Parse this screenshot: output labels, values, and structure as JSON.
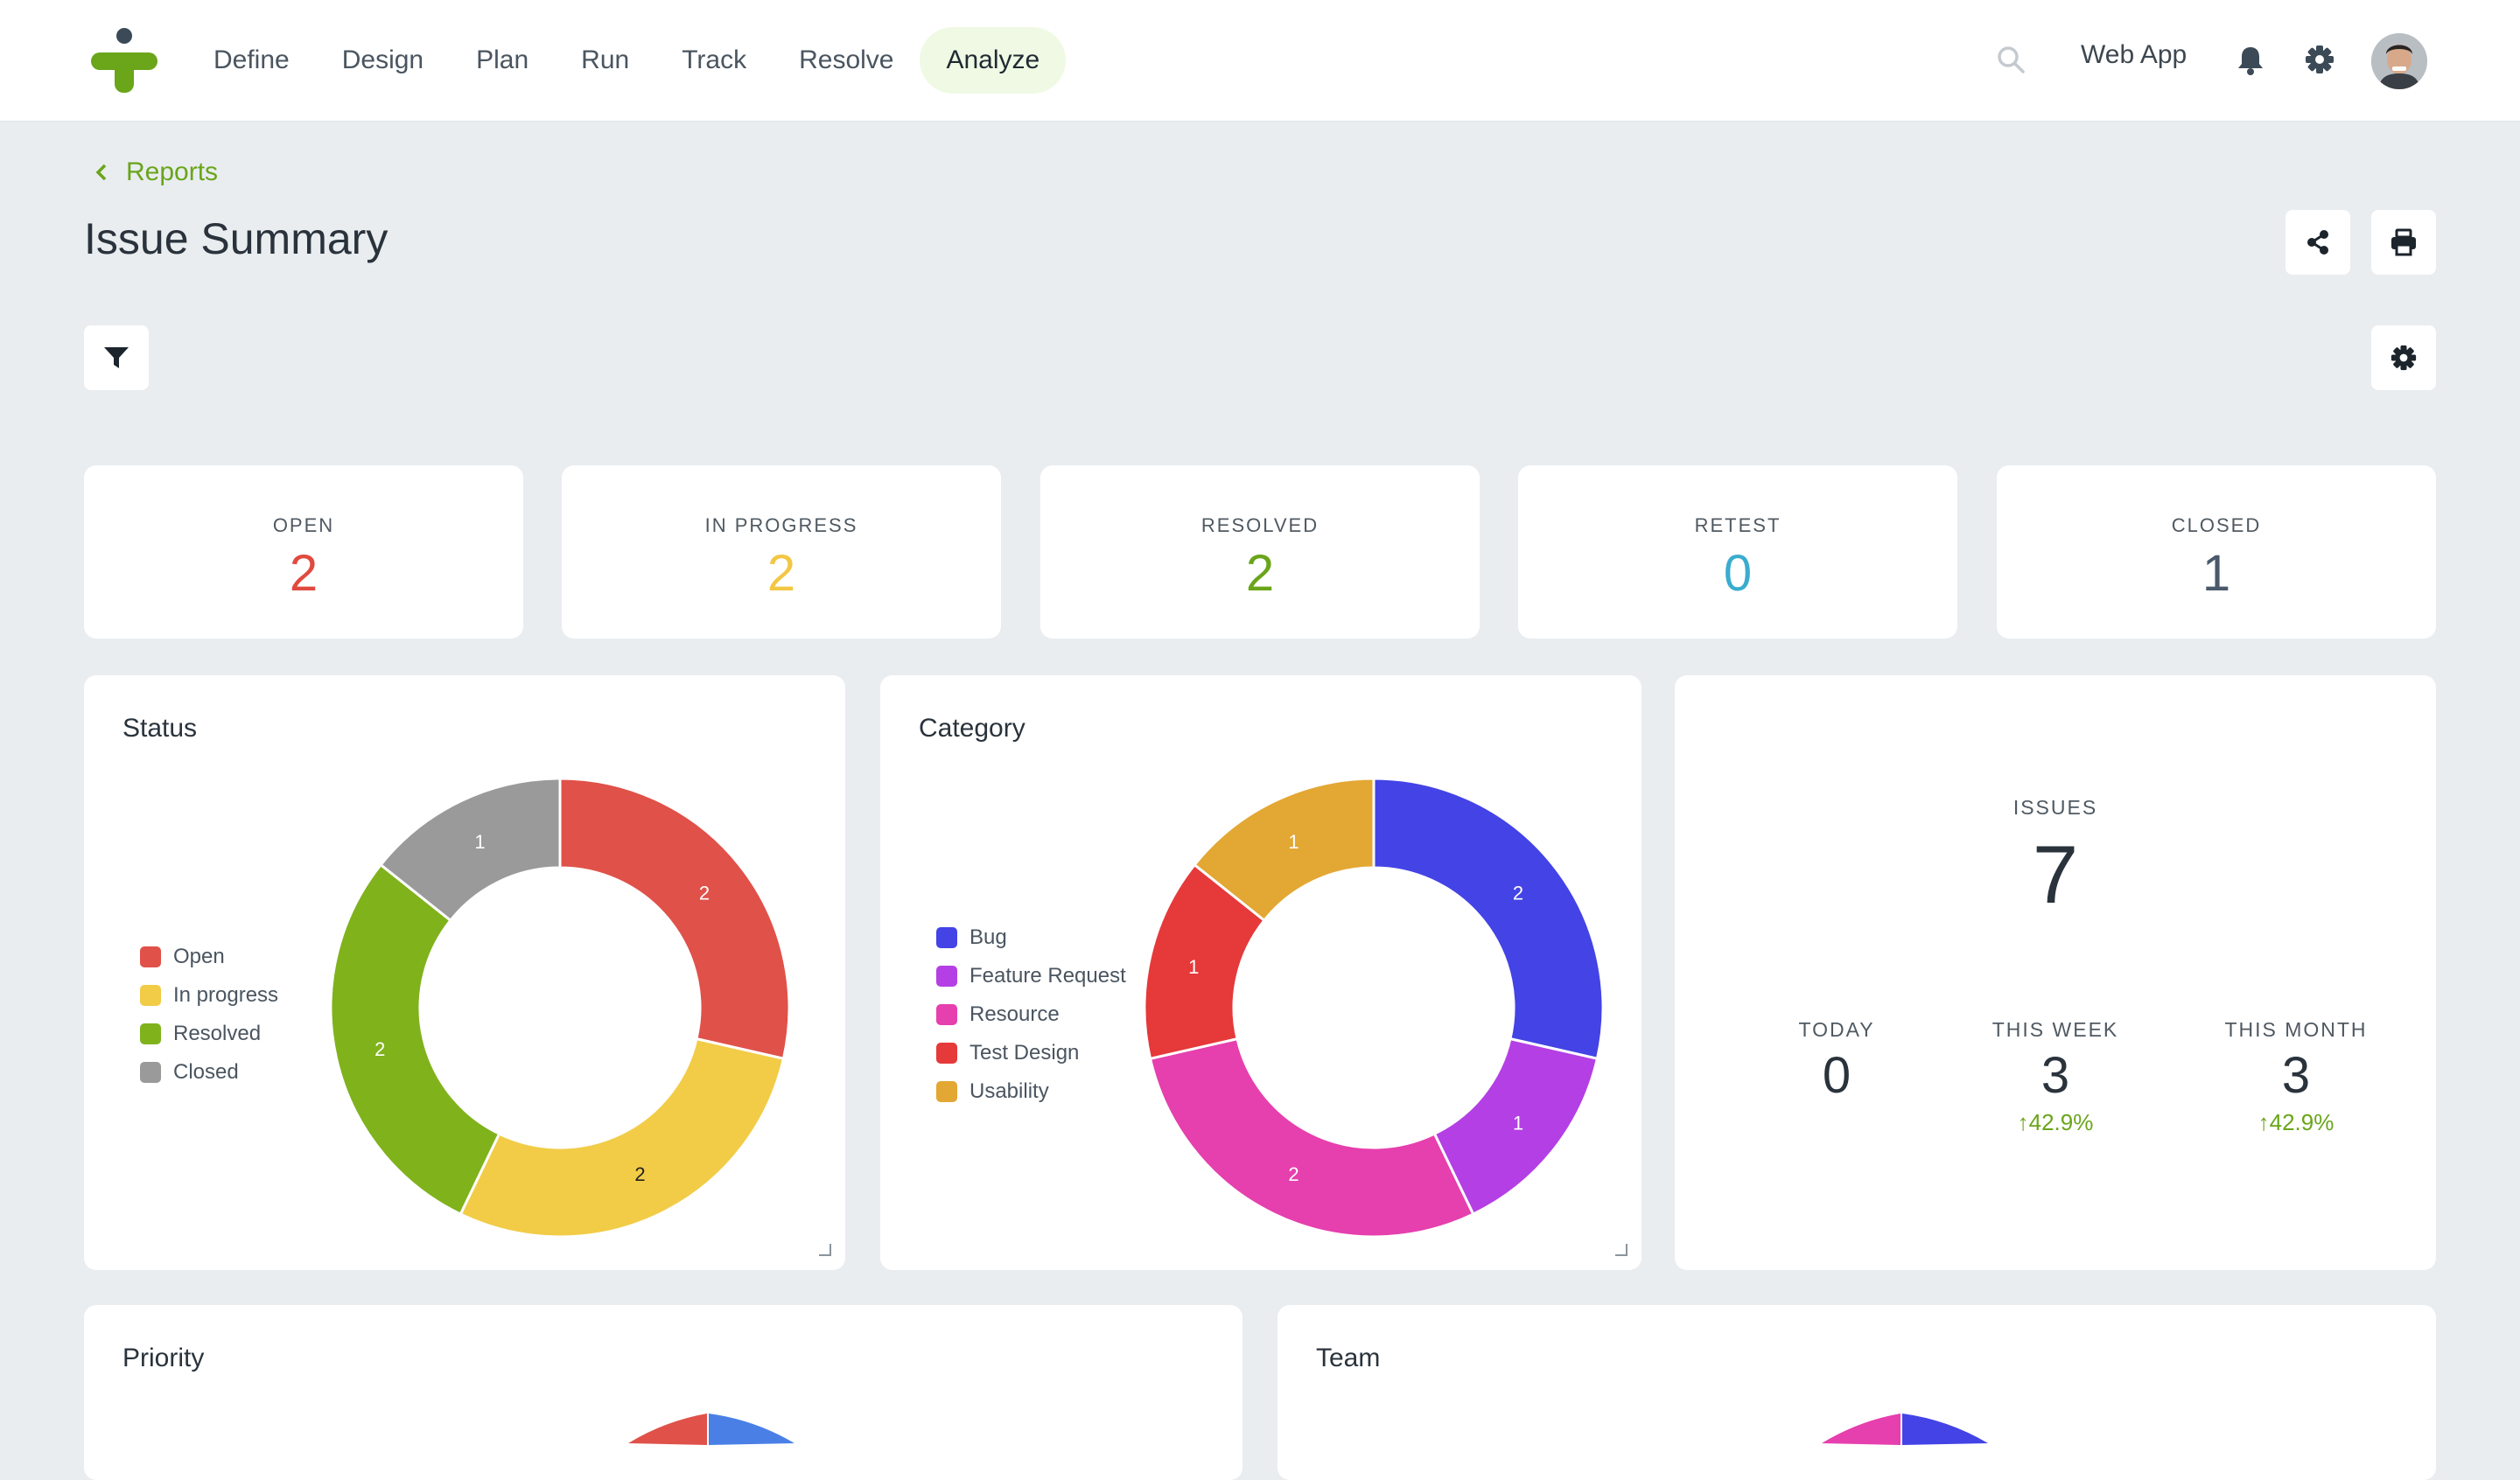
{
  "nav": {
    "items": [
      "Define",
      "Design",
      "Plan",
      "Run",
      "Track",
      "Resolve",
      "Analyze"
    ],
    "active": "Analyze",
    "workspace": "Web App"
  },
  "header": {
    "breadcrumb": "Reports",
    "title": "Issue Summary"
  },
  "stats": [
    {
      "label": "OPEN",
      "value": "2",
      "color": "#e04a3f"
    },
    {
      "label": "IN PROGRESS",
      "value": "2",
      "color": "#f2c744"
    },
    {
      "label": "RESOLVED",
      "value": "2",
      "color": "#6aa51a"
    },
    {
      "label": "RETEST",
      "value": "0",
      "color": "#3aaccf"
    },
    {
      "label": "CLOSED",
      "value": "1",
      "color": "#4a5a6b"
    }
  ],
  "status_panel": {
    "title": "Status"
  },
  "category_panel": {
    "title": "Category"
  },
  "issues_panel": {
    "issues_label": "ISSUES",
    "issues_value": "7",
    "today_label": "TODAY",
    "today_value": "0",
    "week_label": "THIS WEEK",
    "week_value": "3",
    "week_delta": "42.9%",
    "month_label": "THIS MONTH",
    "month_value": "3",
    "month_delta": "42.9%"
  },
  "priority_panel": {
    "title": "Priority"
  },
  "team_panel": {
    "title": "Team"
  },
  "chart_data": [
    {
      "type": "pie",
      "title": "Status",
      "donut": true,
      "categories": [
        "Open",
        "In progress",
        "Resolved",
        "Closed"
      ],
      "values": [
        2,
        2,
        2,
        1
      ],
      "colors": [
        "#e05149",
        "#f2cc47",
        "#80b21c",
        "#9a9a9a"
      ],
      "legend": "left"
    },
    {
      "type": "pie",
      "title": "Category",
      "donut": true,
      "categories": [
        "Bug",
        "Feature Request",
        "Resource",
        "Test Design",
        "Usability"
      ],
      "values": [
        2,
        1,
        2,
        1,
        1
      ],
      "colors": [
        "#4343e6",
        "#b43fe4",
        "#e63fae",
        "#e5393a",
        "#e3a733"
      ],
      "legend": "left"
    }
  ]
}
